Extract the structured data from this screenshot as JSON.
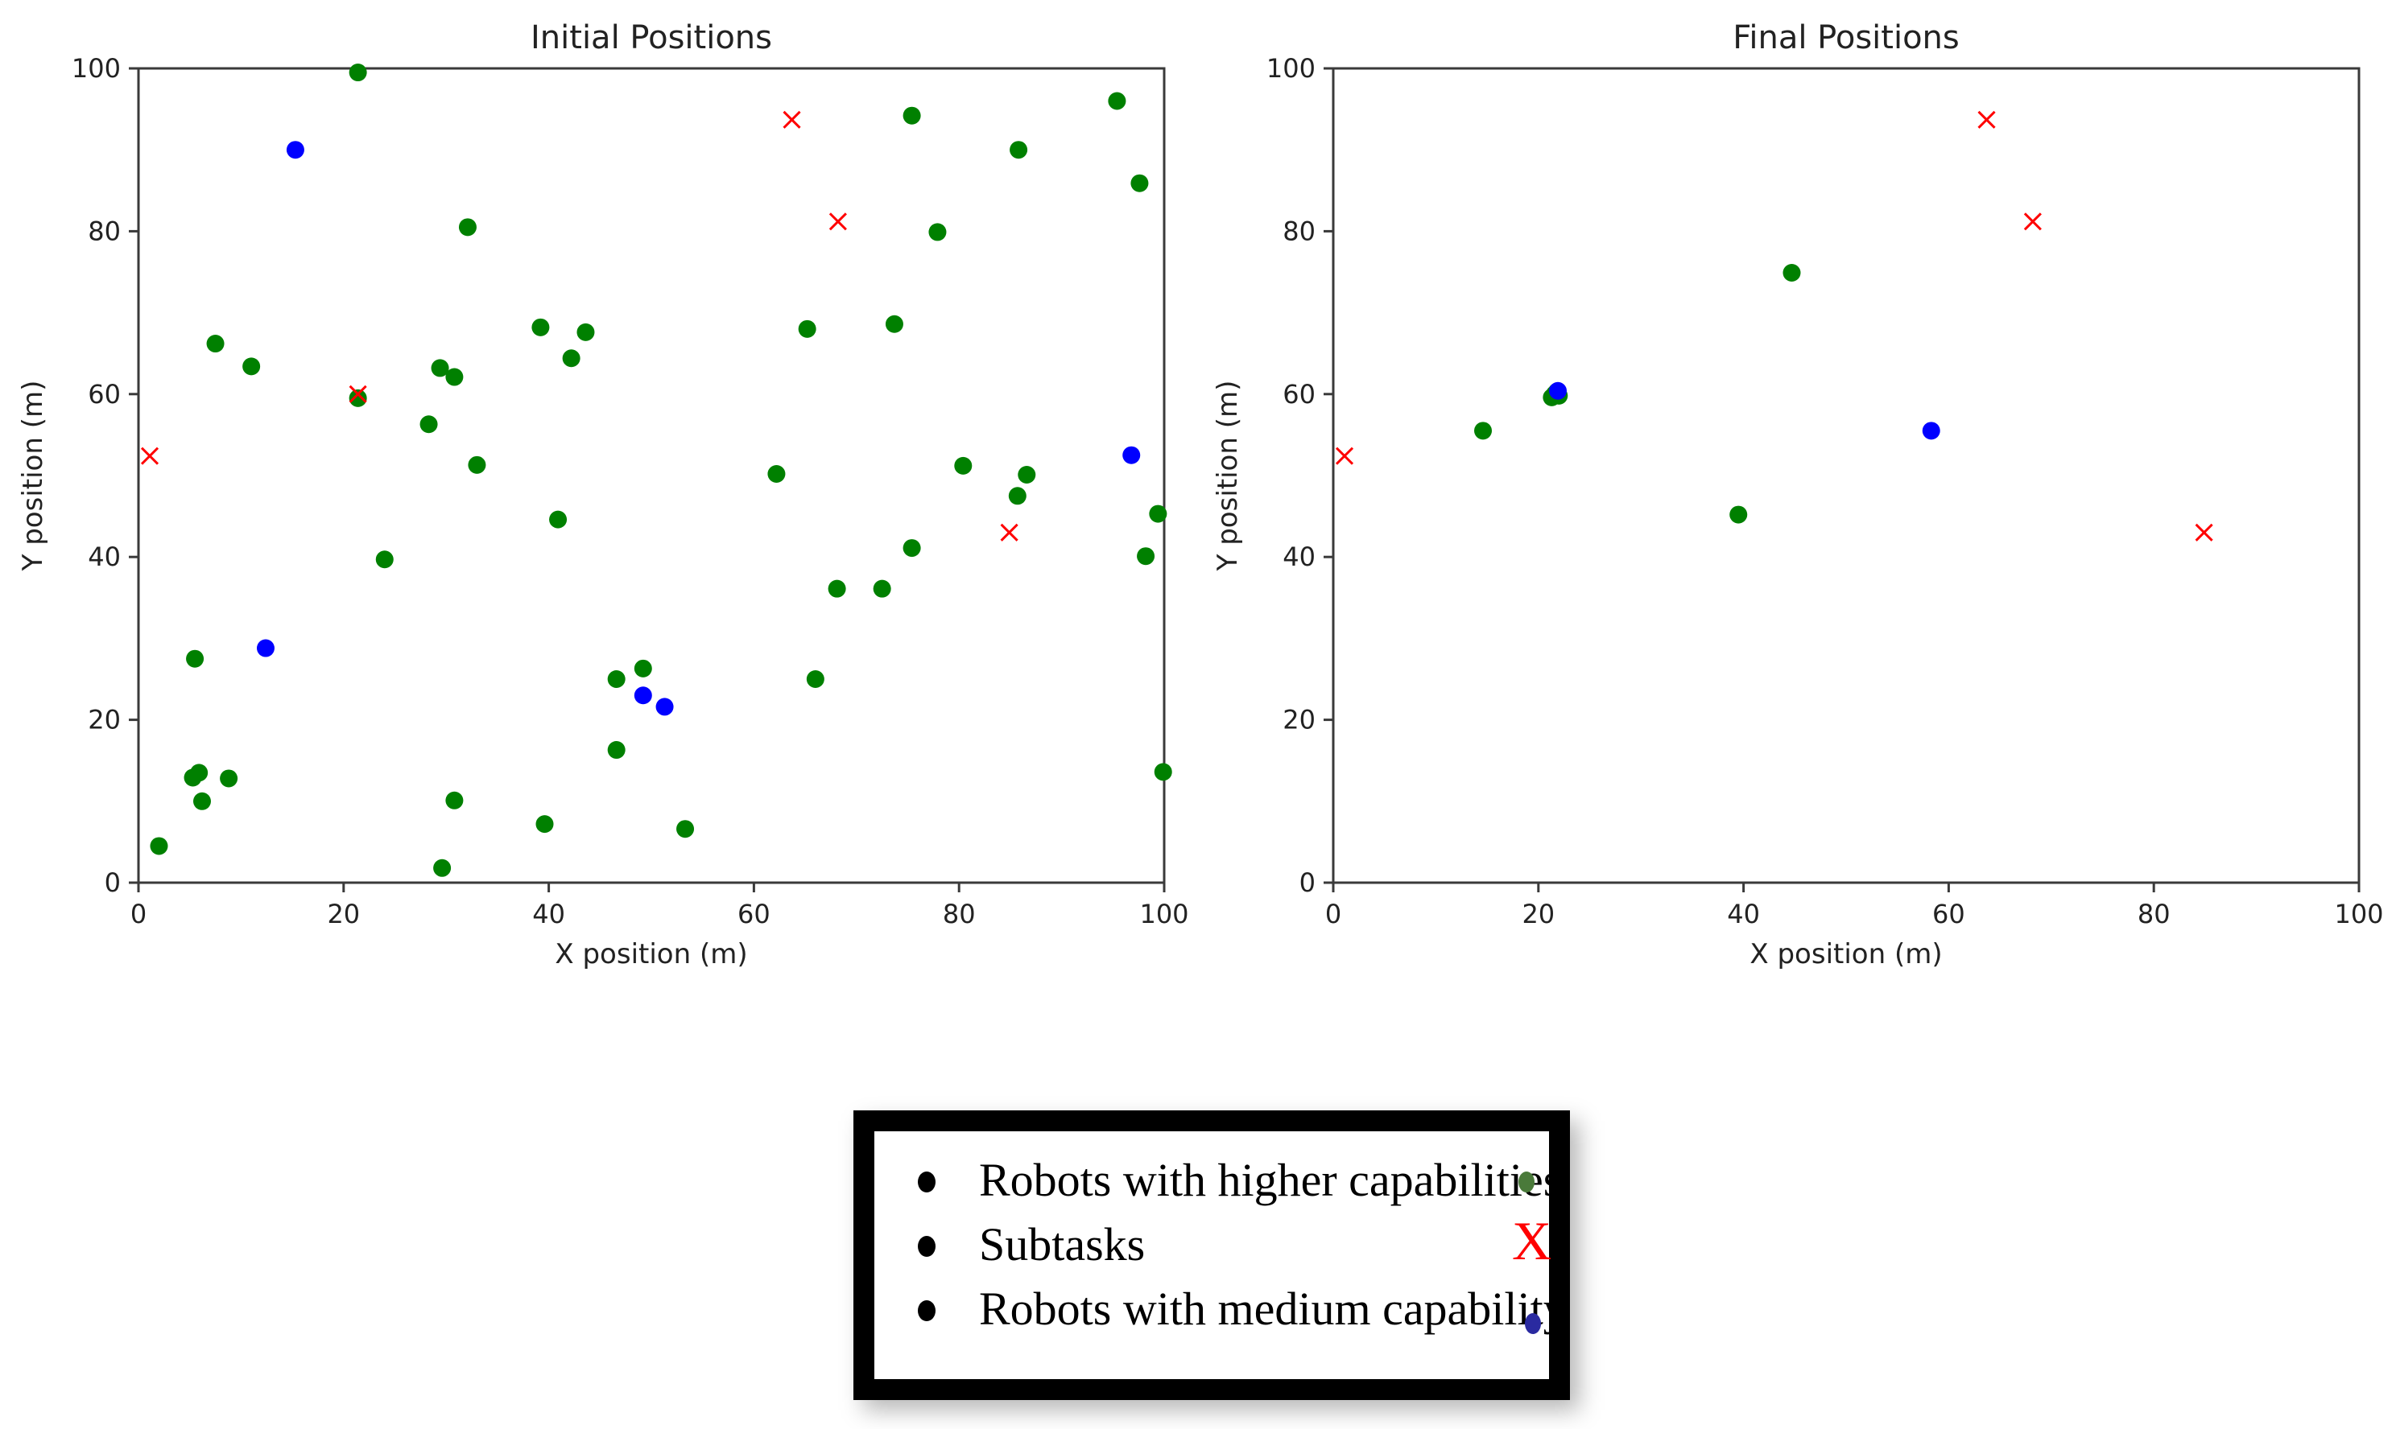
{
  "colors": {
    "higher": "#008000",
    "medium": "#0000ff",
    "subtask": "#ff0000",
    "legend_higher": "#4a7a3a",
    "legend_medium": "#2a2aa0"
  },
  "chart_data": [
    {
      "type": "scatter",
      "title": "Initial Positions",
      "xlabel": "X position (m)",
      "ylabel": "Y position (m)",
      "xlim": [
        0,
        100
      ],
      "ylim": [
        0,
        100
      ],
      "xticks": [
        0,
        20,
        40,
        60,
        80,
        100
      ],
      "yticks": [
        0,
        20,
        40,
        60,
        80,
        100
      ],
      "grid": false,
      "series": [
        {
          "key": "higher",
          "marker": "dot",
          "points": [
            [
              21.4,
              99.5
            ],
            [
              32.1,
              80.5
            ],
            [
              7.5,
              66.2
            ],
            [
              11.0,
              63.4
            ],
            [
              21.4,
              59.5
            ],
            [
              29.4,
              63.2
            ],
            [
              30.8,
              62.1
            ],
            [
              28.3,
              56.3
            ],
            [
              33.0,
              51.3
            ],
            [
              24.0,
              39.7
            ],
            [
              39.2,
              68.2
            ],
            [
              43.6,
              67.6
            ],
            [
              42.2,
              64.4
            ],
            [
              40.9,
              44.6
            ],
            [
              5.5,
              27.5
            ],
            [
              5.3,
              12.9
            ],
            [
              5.9,
              13.5
            ],
            [
              8.8,
              12.8
            ],
            [
              6.2,
              10.0
            ],
            [
              2.0,
              4.5
            ],
            [
              29.6,
              1.8
            ],
            [
              30.8,
              10.1
            ],
            [
              39.6,
              7.2
            ],
            [
              46.6,
              16.3
            ],
            [
              46.6,
              25.0
            ],
            [
              49.2,
              26.3
            ],
            [
              53.3,
              6.6
            ],
            [
              75.4,
              94.2
            ],
            [
              85.8,
              90.0
            ],
            [
              95.4,
              96.0
            ],
            [
              97.6,
              85.9
            ],
            [
              77.9,
              79.9
            ],
            [
              65.2,
              68.0
            ],
            [
              73.7,
              68.6
            ],
            [
              62.2,
              50.2
            ],
            [
              80.4,
              51.2
            ],
            [
              86.6,
              50.1
            ],
            [
              85.7,
              47.5
            ],
            [
              99.4,
              45.3
            ],
            [
              75.4,
              41.1
            ],
            [
              68.1,
              36.1
            ],
            [
              72.5,
              36.1
            ],
            [
              98.2,
              40.1
            ],
            [
              66.0,
              25.0
            ],
            [
              99.9,
              13.6
            ]
          ]
        },
        {
          "key": "medium",
          "marker": "dot",
          "points": [
            [
              15.3,
              90.0
            ],
            [
              12.4,
              28.8
            ],
            [
              49.2,
              23.0
            ],
            [
              51.3,
              21.6
            ],
            [
              96.8,
              52.5
            ]
          ]
        },
        {
          "key": "subtask",
          "marker": "x",
          "points": [
            [
              1.1,
              52.4
            ],
            [
              21.4,
              60.0
            ],
            [
              63.7,
              93.7
            ],
            [
              68.2,
              81.2
            ],
            [
              84.9,
              43.0
            ]
          ]
        }
      ]
    },
    {
      "type": "scatter",
      "title": "Final Positions",
      "xlabel": "X position (m)",
      "ylabel": "Y position (m)",
      "xlim": [
        0,
        100
      ],
      "ylim": [
        0,
        100
      ],
      "xticks": [
        0,
        20,
        40,
        60,
        80,
        100
      ],
      "yticks": [
        0,
        20,
        40,
        60,
        80,
        100
      ],
      "grid": false,
      "series": [
        {
          "key": "higher",
          "marker": "dot",
          "points": [
            [
              21.6,
              60.0
            ],
            [
              21.6,
              60.0
            ],
            [
              21.3,
              59.6
            ],
            [
              22.0,
              59.8
            ],
            [
              21.8,
              60.3
            ],
            [
              14.6,
              55.5
            ],
            [
              44.7,
              74.9
            ],
            [
              39.5,
              45.2
            ]
          ]
        },
        {
          "key": "medium",
          "marker": "dot",
          "points": [
            [
              58.3,
              55.5
            ],
            [
              21.9,
              60.4
            ]
          ]
        },
        {
          "key": "subtask",
          "marker": "x",
          "points": [
            [
              1.1,
              52.4
            ],
            [
              63.7,
              93.7
            ],
            [
              68.2,
              81.2
            ],
            [
              84.9,
              43.0
            ]
          ]
        }
      ]
    }
  ],
  "legend": {
    "items": [
      {
        "label": "Robots with higher capabilities",
        "marker": "dot",
        "color_key": "legend_higher"
      },
      {
        "label": "Subtasks",
        "marker": "x",
        "symbol": "X",
        "color_key": "subtask"
      },
      {
        "label": "Robots with medium capability",
        "marker": "dot",
        "color_key": "legend_medium"
      }
    ]
  }
}
